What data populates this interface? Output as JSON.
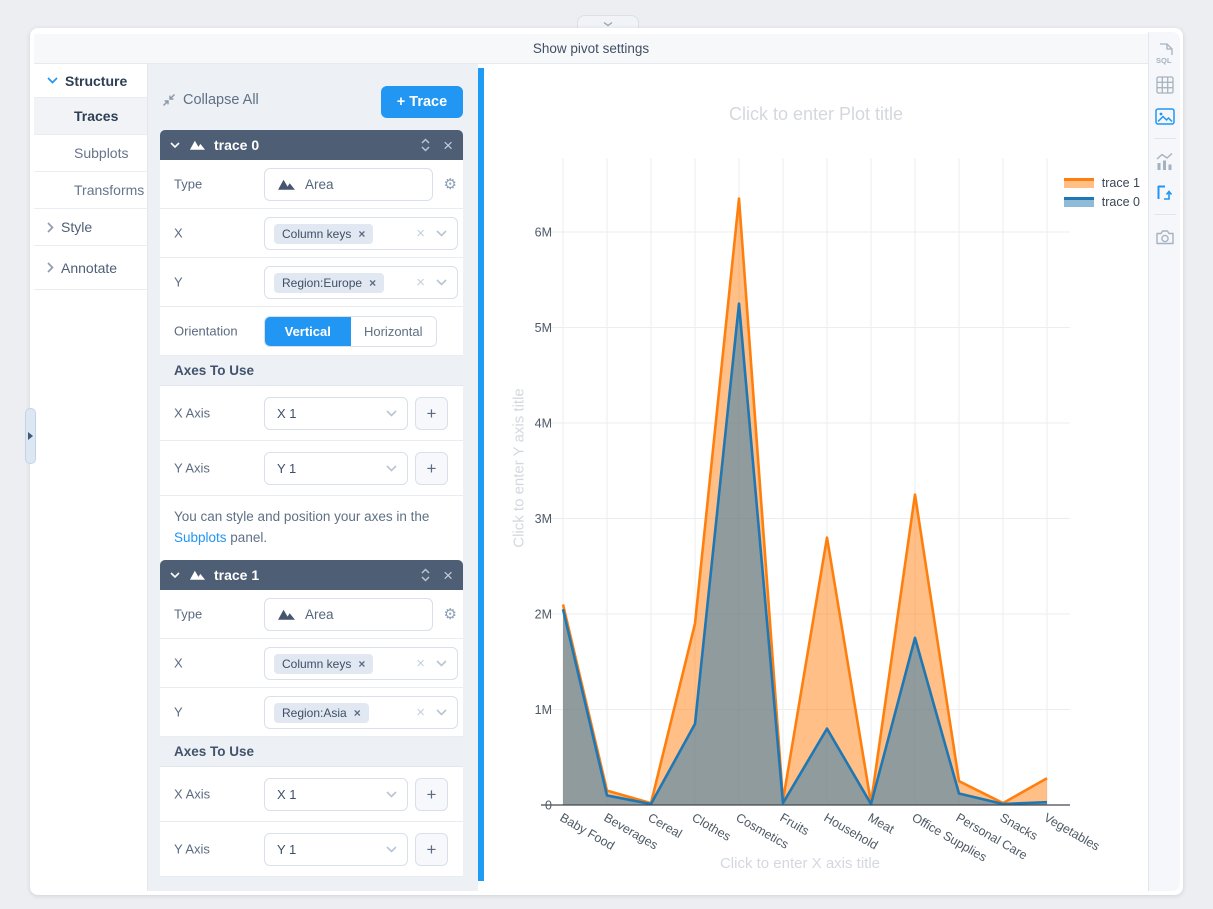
{
  "topbar": {
    "label": "Show pivot settings"
  },
  "sidebar": {
    "items": [
      {
        "label": "Structure"
      },
      {
        "label": "Traces"
      },
      {
        "label": "Subplots"
      },
      {
        "label": "Transforms"
      },
      {
        "label": "Style"
      },
      {
        "label": "Annotate"
      }
    ]
  },
  "panel": {
    "collapse_all": "Collapse All",
    "add_trace": "+ Trace",
    "labels": {
      "type": "Type",
      "x": "X",
      "y": "Y",
      "orientation": "Orientation",
      "axes_to_use": "Axes To Use",
      "x_axis": "X Axis",
      "y_axis": "Y Axis"
    },
    "type_value": "Area",
    "x_axis_value": "X 1",
    "y_axis_value": "Y 1",
    "orientation_options": {
      "vertical": "Vertical",
      "horizontal": "Horizontal"
    },
    "orientation_selected": "Vertical",
    "x_chip": "Column keys",
    "trace0": {
      "name": "trace 0",
      "y_chip": "Region:Europe"
    },
    "trace1": {
      "name": "trace 1",
      "y_chip": "Region:Asia"
    },
    "note": {
      "text": "You can style and position your axes in the ",
      "link": "Subplots",
      "suffix": " panel."
    }
  },
  "chart": {
    "title_placeholder": "Click to enter Plot title",
    "x_title_placeholder": "Click to enter X axis title",
    "y_title_placeholder": "Click to enter Y axis title"
  },
  "glyphs": {
    "x": "×",
    "gear": "⚙",
    "plus": "+"
  },
  "colors": {
    "accent": "#2196f3",
    "trace_header": "#4e5e74",
    "trace1": "#ff7f0e",
    "trace0": "#1f77b4"
  },
  "chart_data": {
    "type": "area",
    "categories": [
      "Baby Food",
      "Beverages",
      "Cereal",
      "Clothes",
      "Cosmetics",
      "Fruits",
      "Household",
      "Meat",
      "Office Supplies",
      "Personal Care",
      "Snacks",
      "Vegetables"
    ],
    "series": [
      {
        "name": "trace 1",
        "line_color": "#ff7f0e",
        "fill_color": "rgba(255,127,14,0.5)",
        "values": [
          2100000,
          150000,
          20000,
          1900000,
          6350000,
          50000,
          2800000,
          20000,
          3250000,
          250000,
          20000,
          280000
        ]
      },
      {
        "name": "trace 0",
        "line_color": "#1f77b4",
        "fill_color": "rgba(31,119,180,0.5)",
        "values": [
          2050000,
          100000,
          10000,
          850000,
          5250000,
          20000,
          800000,
          10000,
          1750000,
          120000,
          10000,
          30000
        ]
      }
    ],
    "y_ticks": [
      {
        "label": "0",
        "value": 0
      },
      {
        "label": "1M",
        "value": 1000000
      },
      {
        "label": "2M",
        "value": 2000000
      },
      {
        "label": "3M",
        "value": 3000000
      },
      {
        "label": "4M",
        "value": 4000000
      },
      {
        "label": "5M",
        "value": 5000000
      },
      {
        "label": "6M",
        "value": 6000000
      }
    ],
    "ylim": [
      0,
      6600000
    ],
    "grid": true,
    "legend_position": "top-right",
    "title": "",
    "xlabel": "",
    "ylabel": ""
  }
}
